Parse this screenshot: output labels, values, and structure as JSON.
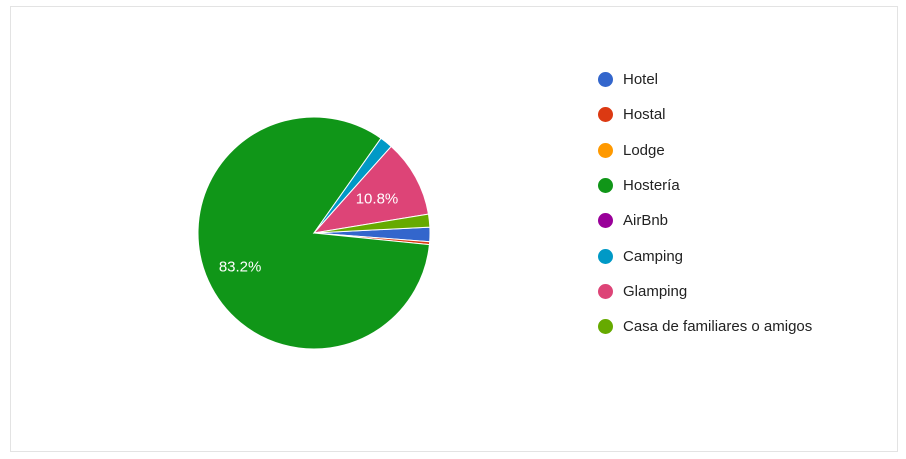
{
  "chart_data": {
    "type": "pie",
    "legend_position": "right",
    "slices": [
      {
        "name": "Hotel",
        "value": 2.0,
        "color": "#3366cc",
        "label": ""
      },
      {
        "name": "Hostal",
        "value": 0.4,
        "color": "#dc3912",
        "label": ""
      },
      {
        "name": "Lodge",
        "value": 0.0,
        "color": "#ff9900",
        "label": ""
      },
      {
        "name": "Hostería",
        "value": 83.2,
        "color": "#109618",
        "label": "83.2%"
      },
      {
        "name": "AirBnb",
        "value": 0.0,
        "color": "#990099",
        "label": ""
      },
      {
        "name": "Camping",
        "value": 1.8,
        "color": "#0099c6",
        "label": ""
      },
      {
        "name": "Glamping",
        "value": 10.8,
        "color": "#dd4477",
        "label": "10.8%"
      },
      {
        "name": "Casa de familiares o amigos",
        "value": 1.8,
        "color": "#66aa00",
        "label": ""
      }
    ]
  }
}
